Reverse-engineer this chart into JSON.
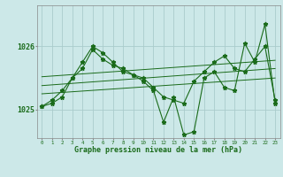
{
  "title": "Graphe pression niveau de la mer (hPa)",
  "bg_color": "#cce8e8",
  "grid_color": "#aacccc",
  "line_color": "#1a6b1a",
  "marker_color": "#1a6b1a",
  "x_labels": [
    "0",
    "1",
    "2",
    "3",
    "4",
    "5",
    "6",
    "7",
    "8",
    "9",
    "10",
    "11",
    "12",
    "13",
    "14",
    "15",
    "16",
    "17",
    "18",
    "19",
    "20",
    "21",
    "22",
    "23"
  ],
  "y_ticks": [
    1025,
    1026
  ],
  "ylim": [
    1024.55,
    1026.65
  ],
  "xlim": [
    -0.5,
    23.5
  ],
  "hours": [
    0,
    1,
    2,
    3,
    4,
    5,
    6,
    7,
    8,
    9,
    10,
    11,
    12,
    13,
    14,
    15,
    16,
    17,
    18,
    19,
    20,
    21,
    22,
    23
  ],
  "pressure": [
    1025.05,
    1025.15,
    1025.3,
    1025.5,
    1025.75,
    1026.0,
    1025.9,
    1025.75,
    1025.6,
    1025.55,
    1025.45,
    1025.3,
    1024.8,
    1025.2,
    1024.6,
    1024.65,
    1025.5,
    1025.6,
    1025.35,
    1025.3,
    1026.05,
    1025.75,
    1026.35,
    1025.1
  ],
  "pressure2": [
    1025.05,
    1025.1,
    1025.2,
    1025.5,
    1025.65,
    1025.95,
    1025.8,
    1025.7,
    1025.65,
    1025.55,
    1025.5,
    1025.35,
    1025.2,
    1025.15,
    1025.1,
    1025.45,
    1025.6,
    1025.75,
    1025.85,
    1025.65,
    1025.6,
    1025.8,
    1026.0,
    1025.15
  ],
  "trend1_x": [
    0,
    23
  ],
  "trend1_y": [
    1025.38,
    1025.65
  ],
  "trend2_x": [
    0,
    23
  ],
  "trend2_y": [
    1025.52,
    1025.78
  ],
  "trend3_x": [
    0,
    23
  ],
  "trend3_y": [
    1025.25,
    1025.5
  ]
}
